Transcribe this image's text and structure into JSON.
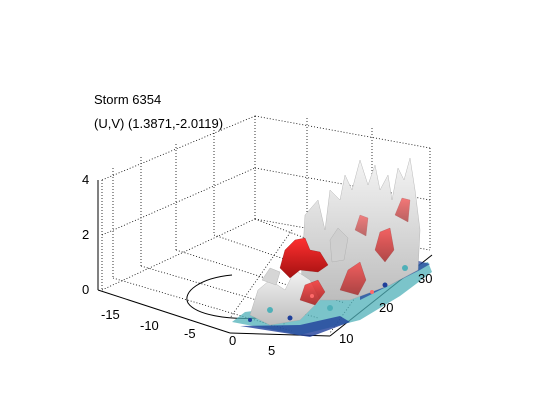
{
  "figure": {
    "title": "Storm 6354",
    "subtitle": "(U,V) (1.3871,-2.0119)"
  },
  "axes": {
    "z_ticks": [
      "4",
      "2",
      "0"
    ],
    "x_ticks": [
      "-15",
      "-10",
      "-5",
      "0",
      "5"
    ],
    "y_ticks": [
      "10",
      "20",
      "30"
    ]
  },
  "colors": {
    "background": "#ffffff",
    "grid": "#000000",
    "surface_white": "#e6e6e6",
    "surface_red": "#e01a1a",
    "surface_blue": "#1f3f9a",
    "surface_cyan": "#4fb0b8"
  }
}
